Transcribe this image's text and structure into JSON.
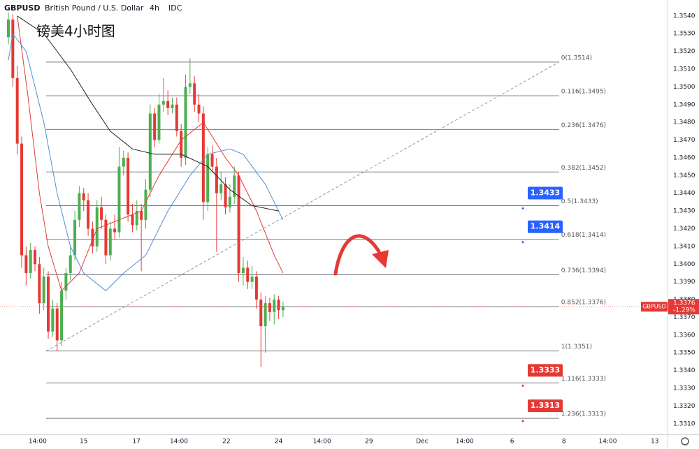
{
  "header": {
    "symbol": "GBPUSD",
    "name": "British Pound / U.S. Dollar",
    "interval": "4h",
    "source": "IDC"
  },
  "chart_data": {
    "type": "candlestick",
    "title": "镑美4小时图",
    "ohlc": {
      "up_color": "#4caf50",
      "down_color": "#e53935",
      "open": [
        1.3528,
        1.3538,
        1.3505,
        1.3468,
        1.3405,
        1.3395,
        1.3408,
        1.34,
        1.3378,
        1.3393,
        1.3362,
        1.3375,
        1.3357,
        1.3385,
        1.3395,
        1.3405,
        1.3425,
        1.344,
        1.3436,
        1.342,
        1.341,
        1.3432,
        1.3425,
        1.3405,
        1.342,
        1.3418,
        1.3455,
        1.346,
        1.3428,
        1.3422,
        1.343,
        1.3425,
        1.3442,
        1.3485,
        1.347,
        1.349,
        1.3492,
        1.3488,
        1.349,
        1.3475,
        1.346,
        1.35,
        1.3502,
        1.349,
        1.3485,
        1.3435,
        1.3462,
        1.3455,
        1.344,
        1.3445,
        1.3432,
        1.3438,
        1.345,
        1.3395,
        1.3398,
        1.339,
        1.3393,
        1.338,
        1.3365,
        1.3378,
        1.3373,
        1.338,
        1.3374
      ],
      "high": [
        1.3542,
        1.3541,
        1.3512,
        1.3472,
        1.341,
        1.3412,
        1.341,
        1.3404,
        1.3398,
        1.3396,
        1.338,
        1.3378,
        1.339,
        1.3398,
        1.341,
        1.343,
        1.3444,
        1.3443,
        1.344,
        1.3424,
        1.3436,
        1.3438,
        1.3428,
        1.3424,
        1.3428,
        1.3466,
        1.3464,
        1.3463,
        1.3434,
        1.3436,
        1.3434,
        1.3448,
        1.349,
        1.3488,
        1.3496,
        1.3505,
        1.3498,
        1.3494,
        1.3494,
        1.3479,
        1.3507,
        1.3516,
        1.3506,
        1.3496,
        1.3489,
        1.3466,
        1.3467,
        1.346,
        1.3452,
        1.3449,
        1.3445,
        1.3455,
        1.3452,
        1.3404,
        1.3402,
        1.3399,
        1.3396,
        1.3384,
        1.3382,
        1.3381,
        1.3383,
        1.3382,
        1.3379
      ],
      "low": [
        1.3524,
        1.35,
        1.3462,
        1.3398,
        1.3388,
        1.3392,
        1.3396,
        1.3372,
        1.3374,
        1.3358,
        1.3359,
        1.3351,
        1.3354,
        1.338,
        1.3391,
        1.3402,
        1.3421,
        1.343,
        1.3416,
        1.3406,
        1.3407,
        1.342,
        1.34,
        1.3402,
        1.3414,
        1.3415,
        1.345,
        1.3424,
        1.3418,
        1.3419,
        1.3396,
        1.342,
        1.3438,
        1.3466,
        1.3468,
        1.3486,
        1.3484,
        1.3485,
        1.3472,
        1.3455,
        1.3456,
        1.3496,
        1.3486,
        1.348,
        1.3425,
        1.343,
        1.3452,
        1.3407,
        1.3436,
        1.3428,
        1.3429,
        1.3434,
        1.339,
        1.3388,
        1.3386,
        1.3386,
        1.3375,
        1.3342,
        1.335,
        1.3368,
        1.3366,
        1.3369,
        1.337
      ],
      "close": [
        1.3538,
        1.3505,
        1.3468,
        1.3405,
        1.3395,
        1.3408,
        1.34,
        1.3378,
        1.3393,
        1.3362,
        1.3375,
        1.3357,
        1.3385,
        1.3395,
        1.3405,
        1.3425,
        1.344,
        1.3436,
        1.342,
        1.341,
        1.3432,
        1.3425,
        1.3405,
        1.342,
        1.3418,
        1.3455,
        1.346,
        1.3428,
        1.3422,
        1.343,
        1.3425,
        1.3442,
        1.3485,
        1.347,
        1.349,
        1.3492,
        1.3488,
        1.349,
        1.3475,
        1.346,
        1.35,
        1.3502,
        1.349,
        1.3485,
        1.3435,
        1.3462,
        1.3455,
        1.344,
        1.3445,
        1.3432,
        1.3438,
        1.345,
        1.3395,
        1.3398,
        1.339,
        1.3393,
        1.338,
        1.3365,
        1.3378,
        1.3373,
        1.338,
        1.3374,
        1.3376
      ]
    },
    "lines": [
      {
        "color": "#e53935",
        "x": [
          2,
          4.4,
          7,
          9,
          12,
          16,
          20,
          25,
          30,
          34,
          39,
          44,
          49,
          52,
          56,
          60,
          62
        ],
        "values": [
          1.354,
          1.3495,
          1.344,
          1.341,
          1.3385,
          1.3395,
          1.342,
          1.3425,
          1.343,
          1.345,
          1.347,
          1.348,
          1.346,
          1.345,
          1.343,
          1.3405,
          1.3395
        ]
      },
      {
        "color": "#4a90d9",
        "x": [
          0,
          1,
          4,
          8,
          11,
          14,
          17,
          22,
          26,
          31,
          36,
          41,
          45,
          50,
          53,
          58,
          62
        ],
        "values": [
          1.3515,
          1.353,
          1.352,
          1.348,
          1.344,
          1.341,
          1.3395,
          1.3385,
          1.3395,
          1.3405,
          1.343,
          1.345,
          1.3462,
          1.3465,
          1.3462,
          1.3445,
          1.3425
        ]
      },
      {
        "color": "#222222",
        "x": [
          2,
          8,
          14,
          19,
          23,
          28,
          33,
          39,
          45,
          50,
          55,
          61
        ],
        "values": [
          1.354,
          1.353,
          1.351,
          1.349,
          1.3475,
          1.3465,
          1.3462,
          1.3462,
          1.3455,
          1.3442,
          1.3433,
          1.343
        ]
      }
    ],
    "xlim": [
      0,
      148
    ],
    "xticks": [
      {
        "value": 6.6,
        "label": "14:00"
      },
      {
        "value": 17.0,
        "label": "15"
      },
      {
        "value": 28.9,
        "label": "17"
      },
      {
        "value": 38.5,
        "label": "14:00"
      },
      {
        "value": 49.2,
        "label": "22"
      },
      {
        "value": 61.0,
        "label": "24"
      },
      {
        "value": 70.8,
        "label": "14:00"
      },
      {
        "value": 81.4,
        "label": "29"
      },
      {
        "value": 93.4,
        "label": "Dec"
      },
      {
        "value": 103.0,
        "label": "14:00"
      },
      {
        "value": 113.7,
        "label": "6"
      },
      {
        "value": 125.4,
        "label": "8"
      },
      {
        "value": 135.3,
        "label": "14:00"
      },
      {
        "value": 145.9,
        "label": "13"
      }
    ],
    "ylim": [
      1.3304,
      1.3549
    ],
    "yticks": [
      {
        "value": 1.331,
        "label": "1.3310"
      },
      {
        "value": 1.332,
        "label": "1.3320"
      },
      {
        "value": 1.333,
        "label": "1.3330"
      },
      {
        "value": 1.334,
        "label": "1.3340"
      },
      {
        "value": 1.335,
        "label": "1.3350"
      },
      {
        "value": 1.336,
        "label": "1.3360"
      },
      {
        "value": 1.337,
        "label": "1.3370"
      },
      {
        "value": 1.338,
        "label": "1.3380"
      },
      {
        "value": 1.339,
        "label": "1.3390"
      },
      {
        "value": 1.34,
        "label": "1.3400"
      },
      {
        "value": 1.341,
        "label": "1.3410"
      },
      {
        "value": 1.342,
        "label": "1.3420"
      },
      {
        "value": 1.343,
        "label": "1.3430"
      },
      {
        "value": 1.344,
        "label": "1.3440"
      },
      {
        "value": 1.345,
        "label": "1.3450"
      },
      {
        "value": 1.346,
        "label": "1.3460"
      },
      {
        "value": 1.347,
        "label": "1.3470"
      },
      {
        "value": 1.348,
        "label": "1.3480"
      },
      {
        "value": 1.349,
        "label": "1.3490"
      },
      {
        "value": 1.35,
        "label": "1.3500"
      },
      {
        "value": 1.351,
        "label": "1.3510"
      },
      {
        "value": 1.352,
        "label": "1.3520"
      },
      {
        "value": 1.353,
        "label": "1.3530"
      },
      {
        "value": 1.354,
        "label": "1.3540"
      }
    ],
    "trend_line": {
      "x": [
        8.5,
        124.3
      ],
      "y": [
        1.3351,
        1.3514
      ]
    },
    "fib_levels": [
      {
        "value": 1.3514,
        "label": "0(1.3514)"
      },
      {
        "value": 1.3495,
        "label": "0.116(1.3495)"
      },
      {
        "value": 1.3476,
        "label": "0.236(1.3476)"
      },
      {
        "value": 1.3452,
        "label": "0.382(1.3452)"
      },
      {
        "value": 1.3433,
        "label": "0.5(1.3433)"
      },
      {
        "value": 1.3414,
        "label": "0.618(1.3414)"
      },
      {
        "value": 1.3394,
        "label": "0.736(1.3394)"
      },
      {
        "value": 1.3376,
        "label": "0.852(1.3376)"
      },
      {
        "value": 1.3351,
        "label": "1(1.3351)"
      },
      {
        "value": 1.3333,
        "label": "1.116(1.3333)"
      },
      {
        "value": 1.3313,
        "label": "1.236(1.3313)"
      }
    ],
    "price_tags": [
      {
        "value": 1.3433,
        "color": "#2962ff"
      },
      {
        "value": 1.3414,
        "color": "#2962ff"
      },
      {
        "value": 1.3333,
        "color": "#e53935"
      },
      {
        "value": 1.3313,
        "color": "#e53935"
      }
    ],
    "last_price": {
      "symbol": "GBPUSD",
      "value": 1.3376,
      "change": "-1.29%",
      "color": "#e53935"
    }
  }
}
